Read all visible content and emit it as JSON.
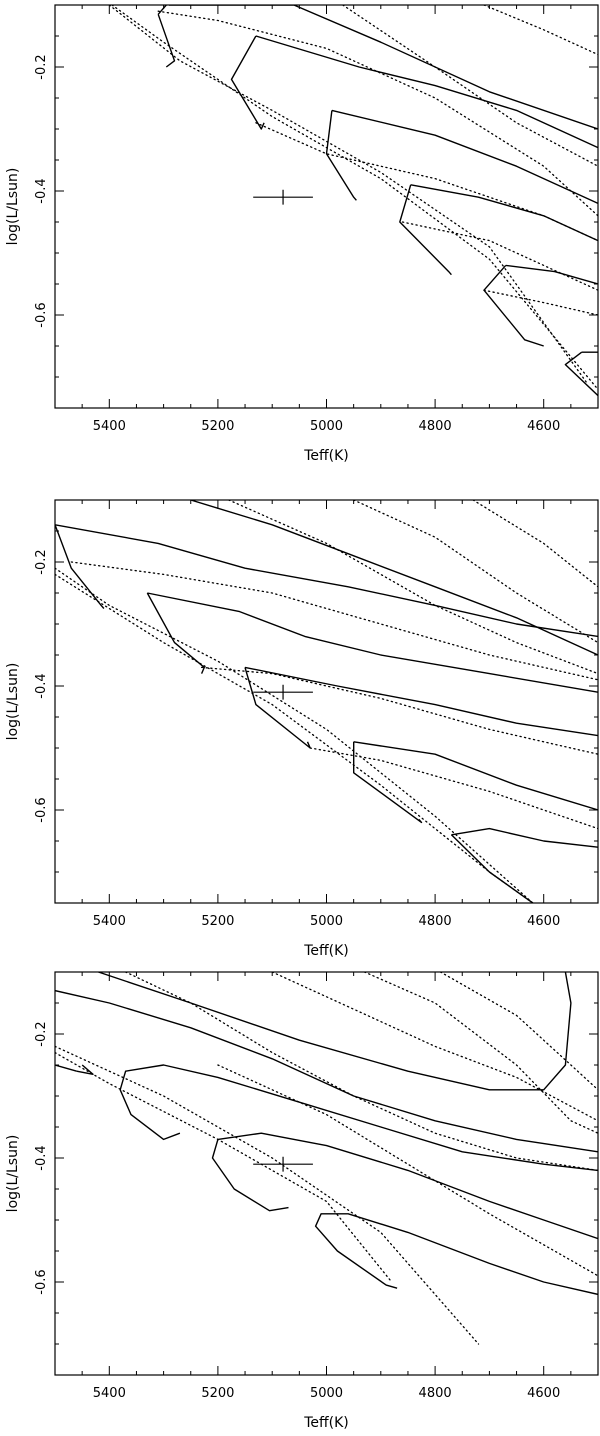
{
  "chart_data": [
    {
      "type": "line",
      "xlabel": "Teff(K)",
      "ylabel": "log(L/Lsun)",
      "xlim": [
        5500,
        4500
      ],
      "ylim": [
        -0.75,
        -0.1
      ],
      "x_ticks": [
        "5400",
        "5200",
        "5000",
        "4800",
        "4600"
      ],
      "y_ticks": [
        "-0.2",
        "-0.4",
        "-0.6"
      ],
      "star": {
        "teff": 5080,
        "teff_err": 55,
        "logL": -0.41,
        "logL_err": 0.012
      },
      "solid_tracks": [
        [
          [
            5310,
            -0.115
          ],
          [
            5280,
            -0.19
          ],
          [
            5295,
            -0.2
          ]
        ],
        [
          [
            5310,
            -0.115
          ],
          [
            5295,
            -0.1
          ]
        ],
        [
          [
            5130,
            -0.15
          ],
          [
            5175,
            -0.22
          ],
          [
            5120,
            -0.3
          ],
          [
            5115,
            -0.29
          ]
        ],
        [
          [
            5130,
            -0.15
          ],
          [
            4940,
            -0.2
          ],
          [
            4800,
            -0.23
          ],
          [
            4650,
            -0.27
          ],
          [
            4500,
            -0.33
          ]
        ],
        [
          [
            5290,
            -0.1
          ],
          [
            5060,
            -0.1
          ],
          [
            4900,
            -0.16
          ],
          [
            4700,
            -0.24
          ],
          [
            4500,
            -0.3
          ]
        ],
        [
          [
            4990,
            -0.27
          ],
          [
            5000,
            -0.34
          ],
          [
            4950,
            -0.41
          ],
          [
            4945,
            -0.415
          ]
        ],
        [
          [
            4990,
            -0.27
          ],
          [
            4800,
            -0.31
          ],
          [
            4650,
            -0.36
          ],
          [
            4500,
            -0.42
          ]
        ],
        [
          [
            4845,
            -0.39
          ],
          [
            4865,
            -0.45
          ],
          [
            4775,
            -0.53
          ],
          [
            4770,
            -0.535
          ]
        ],
        [
          [
            4845,
            -0.39
          ],
          [
            4720,
            -0.41
          ],
          [
            4600,
            -0.44
          ],
          [
            4500,
            -0.48
          ]
        ],
        [
          [
            4670,
            -0.52
          ],
          [
            4710,
            -0.56
          ],
          [
            4635,
            -0.64
          ],
          [
            4600,
            -0.65
          ]
        ],
        [
          [
            4670,
            -0.52
          ],
          [
            4580,
            -0.53
          ],
          [
            4500,
            -0.55
          ]
        ],
        [
          [
            4530,
            -0.66
          ],
          [
            4560,
            -0.68
          ],
          [
            4500,
            -0.73
          ]
        ],
        [
          [
            4530,
            -0.66
          ],
          [
            4500,
            -0.66
          ]
        ]
      ],
      "dotted_tracks": [
        [
          [
            5400,
            -0.1
          ],
          [
            5270,
            -0.19
          ],
          [
            5100,
            -0.27
          ],
          [
            4900,
            -0.37
          ],
          [
            4700,
            -0.49
          ],
          [
            4520,
            -0.71
          ]
        ],
        [
          [
            5395,
            -0.1
          ],
          [
            5300,
            -0.16
          ],
          [
            5100,
            -0.28
          ],
          [
            4900,
            -0.38
          ],
          [
            4700,
            -0.51
          ],
          [
            4500,
            -0.72
          ]
        ],
        [
          [
            5310,
            -0.11
          ],
          [
            5200,
            -0.125
          ],
          [
            5000,
            -0.17
          ],
          [
            4800,
            -0.25
          ],
          [
            4600,
            -0.36
          ],
          [
            4500,
            -0.44
          ]
        ],
        [
          [
            5130,
            -0.29
          ],
          [
            5000,
            -0.34
          ],
          [
            4800,
            -0.38
          ],
          [
            4600,
            -0.44
          ],
          [
            4500,
            -0.48
          ]
        ],
        [
          [
            4860,
            -0.45
          ],
          [
            4700,
            -0.48
          ],
          [
            4500,
            -0.56
          ]
        ],
        [
          [
            4710,
            -0.56
          ],
          [
            4600,
            -0.58
          ],
          [
            4500,
            -0.6
          ]
        ],
        [
          [
            4970,
            -0.1
          ],
          [
            4800,
            -0.2
          ],
          [
            4650,
            -0.29
          ],
          [
            4500,
            -0.36
          ]
        ],
        [
          [
            4710,
            -0.1
          ],
          [
            4600,
            -0.14
          ],
          [
            4500,
            -0.18
          ]
        ]
      ]
    },
    {
      "type": "line",
      "xlabel": "Teff(K)",
      "ylabel": "log(L/Lsun)",
      "xlim": [
        5500,
        4500
      ],
      "ylim": [
        -0.75,
        -0.1
      ],
      "x_ticks": [
        "5400",
        "5200",
        "5000",
        "4800",
        "4600"
      ],
      "y_ticks": [
        "-0.2",
        "-0.4",
        "-0.6"
      ],
      "star": {
        "teff": 5080,
        "teff_err": 55,
        "logL": -0.41,
        "logL_err": 0.012
      },
      "solid_tracks": [
        [
          [
            5500,
            -0.14
          ],
          [
            5470,
            -0.21
          ],
          [
            5415,
            -0.27
          ],
          [
            5410,
            -0.275
          ]
        ],
        [
          [
            5500,
            -0.14
          ],
          [
            5310,
            -0.17
          ],
          [
            5150,
            -0.21
          ],
          [
            4960,
            -0.24
          ],
          [
            4800,
            -0.27
          ],
          [
            4650,
            -0.3
          ],
          [
            4500,
            -0.32
          ]
        ],
        [
          [
            5250,
            -0.1
          ],
          [
            5100,
            -0.14
          ],
          [
            4950,
            -0.19
          ],
          [
            4800,
            -0.24
          ],
          [
            4650,
            -0.29
          ],
          [
            4500,
            -0.35
          ]
        ],
        [
          [
            5330,
            -0.25
          ],
          [
            5280,
            -0.33
          ],
          [
            5225,
            -0.37
          ],
          [
            5230,
            -0.38
          ]
        ],
        [
          [
            5330,
            -0.25
          ],
          [
            5160,
            -0.28
          ],
          [
            5040,
            -0.32
          ],
          [
            4900,
            -0.35
          ],
          [
            4700,
            -0.38
          ],
          [
            4500,
            -0.41
          ]
        ],
        [
          [
            5150,
            -0.37
          ],
          [
            5130,
            -0.43
          ],
          [
            5030,
            -0.5
          ],
          [
            5035,
            -0.49
          ]
        ],
        [
          [
            5150,
            -0.37
          ],
          [
            4980,
            -0.4
          ],
          [
            4800,
            -0.43
          ],
          [
            4650,
            -0.46
          ],
          [
            4500,
            -0.48
          ]
        ],
        [
          [
            4950,
            -0.49
          ],
          [
            4950,
            -0.54
          ],
          [
            4825,
            -0.62
          ],
          [
            4830,
            -0.615
          ]
        ],
        [
          [
            4950,
            -0.49
          ],
          [
            4800,
            -0.51
          ],
          [
            4650,
            -0.56
          ],
          [
            4500,
            -0.6
          ]
        ],
        [
          [
            4770,
            -0.64
          ],
          [
            4700,
            -0.7
          ],
          [
            4620,
            -0.75
          ]
        ],
        [
          [
            4770,
            -0.64
          ],
          [
            4700,
            -0.63
          ],
          [
            4600,
            -0.65
          ],
          [
            4500,
            -0.66
          ]
        ]
      ],
      "dotted_tracks": [
        [
          [
            5500,
            -0.22
          ],
          [
            5300,
            -0.33
          ],
          [
            5100,
            -0.43
          ],
          [
            4900,
            -0.56
          ],
          [
            4700,
            -0.7
          ],
          [
            4620,
            -0.75
          ]
        ],
        [
          [
            5500,
            -0.21
          ],
          [
            5400,
            -0.27
          ],
          [
            5200,
            -0.36
          ],
          [
            5000,
            -0.47
          ],
          [
            4800,
            -0.61
          ],
          [
            4620,
            -0.75
          ]
        ],
        [
          [
            5470,
            -0.2
          ],
          [
            5300,
            -0.22
          ],
          [
            5100,
            -0.25
          ],
          [
            4900,
            -0.3
          ],
          [
            4700,
            -0.35
          ],
          [
            4500,
            -0.39
          ]
        ],
        [
          [
            5230,
            -0.37
          ],
          [
            5100,
            -0.38
          ],
          [
            4900,
            -0.42
          ],
          [
            4700,
            -0.47
          ],
          [
            4500,
            -0.51
          ]
        ],
        [
          [
            5030,
            -0.5
          ],
          [
            4900,
            -0.52
          ],
          [
            4700,
            -0.57
          ],
          [
            4500,
            -0.63
          ]
        ],
        [
          [
            5180,
            -0.1
          ],
          [
            5000,
            -0.17
          ],
          [
            4800,
            -0.27
          ],
          [
            4650,
            -0.33
          ],
          [
            4500,
            -0.38
          ]
        ],
        [
          [
            4950,
            -0.1
          ],
          [
            4800,
            -0.16
          ],
          [
            4650,
            -0.25
          ],
          [
            4500,
            -0.33
          ]
        ],
        [
          [
            4730,
            -0.1
          ],
          [
            4600,
            -0.17
          ],
          [
            4500,
            -0.24
          ]
        ]
      ]
    },
    {
      "type": "line",
      "xlabel": "Teff(K)",
      "ylabel": "log(L/Lsun)",
      "xlim": [
        5500,
        4500
      ],
      "ylim": [
        -0.75,
        -0.1
      ],
      "x_ticks": [
        "5400",
        "5200",
        "5000",
        "4800",
        "4600"
      ],
      "y_ticks": [
        "-0.2",
        "-0.4",
        "-0.6"
      ],
      "star": {
        "teff": 5080,
        "teff_err": 55,
        "logL": -0.41,
        "logL_err": 0.012
      },
      "solid_tracks": [
        [
          [
            5500,
            -0.13
          ],
          [
            5400,
            -0.15
          ],
          [
            5250,
            -0.19
          ],
          [
            5100,
            -0.24
          ],
          [
            4950,
            -0.3
          ],
          [
            4800,
            -0.34
          ],
          [
            4650,
            -0.37
          ],
          [
            4500,
            -0.39
          ]
        ],
        [
          [
            5420,
            -0.1
          ],
          [
            5250,
            -0.15
          ],
          [
            5050,
            -0.21
          ],
          [
            4850,
            -0.26
          ],
          [
            4700,
            -0.29
          ],
          [
            4600,
            -0.29
          ],
          [
            4560,
            -0.25
          ],
          [
            4550,
            -0.15
          ],
          [
            4560,
            -0.1
          ]
        ],
        [
          [
            5460,
            -0.26
          ],
          [
            5500,
            -0.25
          ]
        ],
        [
          [
            5460,
            -0.26
          ],
          [
            5430,
            -0.265
          ],
          [
            5450,
            -0.25
          ]
        ],
        [
          [
            5270,
            -0.36
          ],
          [
            5300,
            -0.37
          ],
          [
            5360,
            -0.33
          ],
          [
            5380,
            -0.29
          ],
          [
            5370,
            -0.26
          ],
          [
            5300,
            -0.25
          ],
          [
            5200,
            -0.27
          ],
          [
            5050,
            -0.31
          ],
          [
            4900,
            -0.35
          ],
          [
            4750,
            -0.39
          ],
          [
            4600,
            -0.41
          ],
          [
            4500,
            -0.42
          ]
        ],
        [
          [
            5070,
            -0.48
          ],
          [
            5105,
            -0.485
          ],
          [
            5170,
            -0.45
          ],
          [
            5210,
            -0.4
          ],
          [
            5200,
            -0.37
          ],
          [
            5120,
            -0.36
          ],
          [
            5000,
            -0.38
          ],
          [
            4850,
            -0.42
          ],
          [
            4700,
            -0.47
          ],
          [
            4600,
            -0.5
          ],
          [
            4500,
            -0.53
          ]
        ],
        [
          [
            4870,
            -0.61
          ],
          [
            4890,
            -0.605
          ],
          [
            4980,
            -0.55
          ],
          [
            5020,
            -0.51
          ],
          [
            5010,
            -0.49
          ],
          [
            4960,
            -0.49
          ],
          [
            4850,
            -0.52
          ],
          [
            4700,
            -0.57
          ],
          [
            4600,
            -0.6
          ],
          [
            4500,
            -0.62
          ]
        ]
      ],
      "dotted_tracks": [
        [
          [
            5500,
            -0.22
          ],
          [
            5300,
            -0.3
          ],
          [
            5100,
            -0.4
          ],
          [
            4900,
            -0.52
          ],
          [
            4720,
            -0.7
          ]
        ],
        [
          [
            5500,
            -0.23
          ],
          [
            5400,
            -0.28
          ],
          [
            5200,
            -0.37
          ],
          [
            5000,
            -0.47
          ],
          [
            4880,
            -0.6
          ]
        ],
        [
          [
            5370,
            -0.1
          ],
          [
            5250,
            -0.15
          ],
          [
            5100,
            -0.23
          ],
          [
            4950,
            -0.3
          ],
          [
            4800,
            -0.36
          ],
          [
            4650,
            -0.4
          ],
          [
            4500,
            -0.42
          ]
        ],
        [
          [
            5200,
            -0.25
          ],
          [
            5000,
            -0.33
          ],
          [
            4850,
            -0.41
          ],
          [
            4700,
            -0.49
          ],
          [
            4500,
            -0.59
          ]
        ],
        [
          [
            5100,
            -0.1
          ],
          [
            4950,
            -0.16
          ],
          [
            4800,
            -0.22
          ],
          [
            4650,
            -0.27
          ],
          [
            4500,
            -0.34
          ]
        ],
        [
          [
            4930,
            -0.1
          ],
          [
            4800,
            -0.15
          ],
          [
            4650,
            -0.25
          ],
          [
            4550,
            -0.34
          ],
          [
            4500,
            -0.36
          ]
        ],
        [
          [
            4790,
            -0.1
          ],
          [
            4650,
            -0.17
          ],
          [
            4550,
            -0.25
          ],
          [
            4500,
            -0.29
          ]
        ]
      ]
    }
  ]
}
